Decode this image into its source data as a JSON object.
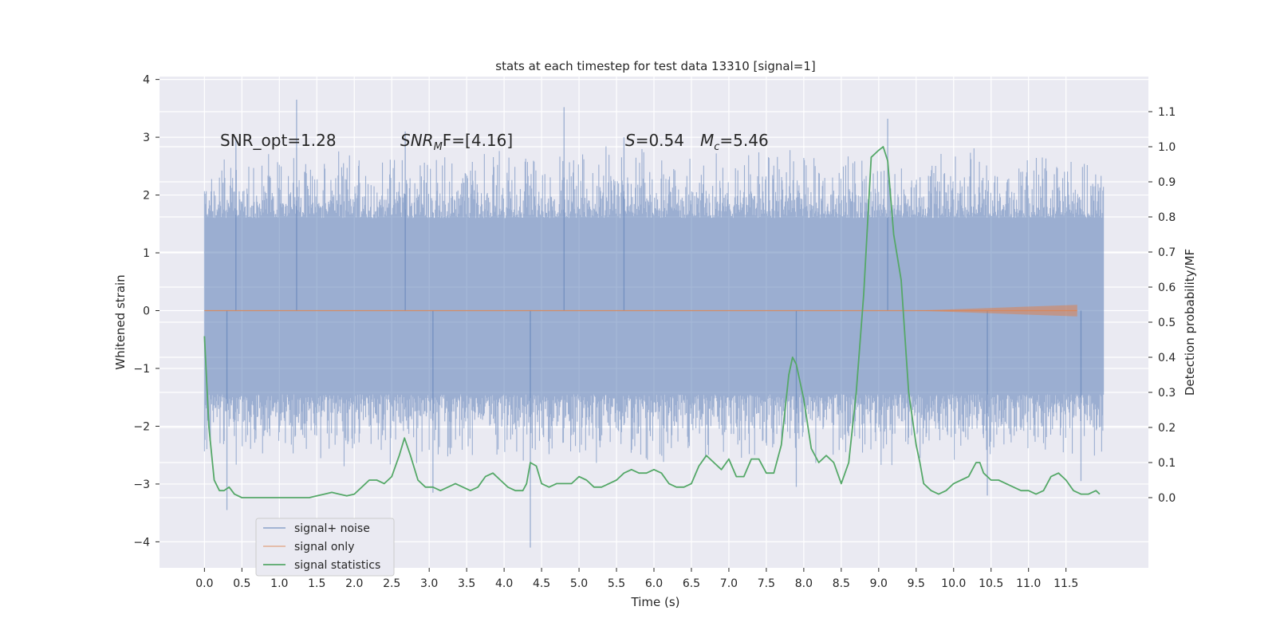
{
  "chart_data": {
    "type": "line",
    "title": "stats at each timestep for test data 13310 [signal=1]",
    "xlabel": "Time (s)",
    "ylabel": "Whitened strain",
    "ylabel_right": "Detection probability/MF",
    "xlim": [
      -0.6,
      12.6
    ],
    "ylim": [
      -4.45,
      4.05
    ],
    "ylim_right": [
      -0.2,
      1.2
    ],
    "x_ticks": [
      "0.0",
      "0.5",
      "1.0",
      "1.5",
      "2.0",
      "2.5",
      "3.0",
      "3.5",
      "4.0",
      "4.5",
      "5.0",
      "5.5",
      "6.0",
      "6.5",
      "7.0",
      "7.5",
      "8.0",
      "8.5",
      "9.0",
      "9.5",
      "10.0",
      "10.5",
      "11.0",
      "11.5"
    ],
    "y_ticks": [
      "−4",
      "−3",
      "−2",
      "−1",
      "0",
      "1",
      "2",
      "3",
      "4"
    ],
    "y_ticks_right": [
      "0.0",
      "0.1",
      "0.2",
      "0.3",
      "0.4",
      "0.5",
      "0.6",
      "0.7",
      "0.8",
      "0.9",
      "1.0",
      "1.1"
    ],
    "grid": true,
    "legend_position": "lower-left",
    "annotations": {
      "snr_opt": "SNR_opt=1.28",
      "snr_mf_main": "SNR",
      "snr_mf_sub": "M",
      "snr_mf_rest": "F=[4.16]",
      "s_main": "S",
      "s_rest": "=0.54",
      "mc_main": "M",
      "mc_sub": "c",
      "mc_rest": "=5.46"
    },
    "series": [
      {
        "name": "signal+ noise",
        "color": "#4c72b0",
        "description_axis": "left",
        "x_range": [
          0.0,
          12.0
        ],
        "amplitude_core": [
          -1.45,
          1.6
        ],
        "spike_peaks": [
          {
            "x": 1.23,
            "y": 3.65
          },
          {
            "x": 4.8,
            "y": 3.52
          },
          {
            "x": 9.12,
            "y": 3.32
          },
          {
            "x": 0.42,
            "y": 3.0
          },
          {
            "x": 2.68,
            "y": 3.1
          },
          {
            "x": 5.6,
            "y": 3.0
          },
          {
            "x": 4.35,
            "y": -4.1
          },
          {
            "x": 0.3,
            "y": -3.45
          },
          {
            "x": 3.05,
            "y": -3.15
          },
          {
            "x": 7.9,
            "y": -3.05
          },
          {
            "x": 10.45,
            "y": -3.2
          },
          {
            "x": 11.7,
            "y": -2.95
          }
        ]
      },
      {
        "name": "signal only",
        "color": "#dd8452",
        "description_axis": "left",
        "x_range": [
          0.0,
          11.65
        ],
        "chirp_end_amplitude": 0.1
      },
      {
        "name": "signal statistics",
        "color": "#55a868",
        "description_axis": "right",
        "x": [
          0.0,
          0.06,
          0.13,
          0.2,
          0.26,
          0.33,
          0.4,
          0.5,
          0.6,
          0.7,
          0.8,
          0.9,
          1.0,
          1.1,
          1.2,
          1.3,
          1.4,
          1.5,
          1.6,
          1.7,
          1.8,
          1.9,
          2.0,
          2.1,
          2.2,
          2.3,
          2.4,
          2.5,
          2.6,
          2.67,
          2.75,
          2.85,
          2.95,
          3.05,
          3.15,
          3.25,
          3.35,
          3.45,
          3.55,
          3.65,
          3.75,
          3.85,
          3.95,
          4.05,
          4.15,
          4.25,
          4.3,
          4.35,
          4.43,
          4.5,
          4.6,
          4.7,
          4.8,
          4.9,
          5.0,
          5.1,
          5.2,
          5.3,
          5.4,
          5.5,
          5.6,
          5.7,
          5.8,
          5.9,
          6.0,
          6.1,
          6.2,
          6.3,
          6.4,
          6.5,
          6.6,
          6.7,
          6.8,
          6.9,
          7.0,
          7.1,
          7.2,
          7.3,
          7.4,
          7.5,
          7.6,
          7.7,
          7.8,
          7.85,
          7.9,
          8.0,
          8.1,
          8.2,
          8.3,
          8.4,
          8.5,
          8.6,
          8.7,
          8.8,
          8.9,
          9.0,
          9.06,
          9.12,
          9.2,
          9.3,
          9.4,
          9.5,
          9.55,
          9.6,
          9.7,
          9.8,
          9.9,
          10.0,
          10.1,
          10.2,
          10.3,
          10.35,
          10.4,
          10.5,
          10.6,
          10.7,
          10.8,
          10.9,
          11.0,
          11.1,
          11.2,
          11.3,
          11.4,
          11.5,
          11.6,
          11.7,
          11.8,
          11.9,
          11.95
        ],
        "y": [
          0.46,
          0.2,
          0.05,
          0.02,
          0.02,
          0.03,
          0.01,
          0.0,
          0.0,
          0.0,
          0.0,
          0.0,
          0.0,
          0.0,
          0.0,
          0.0,
          0.0,
          0.005,
          0.01,
          0.015,
          0.01,
          0.005,
          0.01,
          0.03,
          0.05,
          0.05,
          0.04,
          0.06,
          0.12,
          0.17,
          0.12,
          0.05,
          0.03,
          0.03,
          0.02,
          0.03,
          0.04,
          0.03,
          0.02,
          0.03,
          0.06,
          0.07,
          0.05,
          0.03,
          0.02,
          0.02,
          0.04,
          0.1,
          0.09,
          0.04,
          0.03,
          0.04,
          0.04,
          0.04,
          0.06,
          0.05,
          0.03,
          0.03,
          0.04,
          0.05,
          0.07,
          0.08,
          0.07,
          0.07,
          0.08,
          0.07,
          0.04,
          0.03,
          0.03,
          0.04,
          0.09,
          0.12,
          0.1,
          0.08,
          0.11,
          0.06,
          0.06,
          0.11,
          0.11,
          0.07,
          0.07,
          0.15,
          0.35,
          0.4,
          0.38,
          0.28,
          0.14,
          0.1,
          0.12,
          0.1,
          0.04,
          0.1,
          0.3,
          0.58,
          0.97,
          0.99,
          1.0,
          0.96,
          0.75,
          0.62,
          0.3,
          0.15,
          0.1,
          0.04,
          0.02,
          0.01,
          0.02,
          0.04,
          0.05,
          0.06,
          0.1,
          0.1,
          0.07,
          0.05,
          0.05,
          0.04,
          0.03,
          0.02,
          0.02,
          0.01,
          0.02,
          0.06,
          0.07,
          0.05,
          0.02,
          0.01,
          0.01,
          0.02,
          0.01
        ]
      }
    ]
  }
}
